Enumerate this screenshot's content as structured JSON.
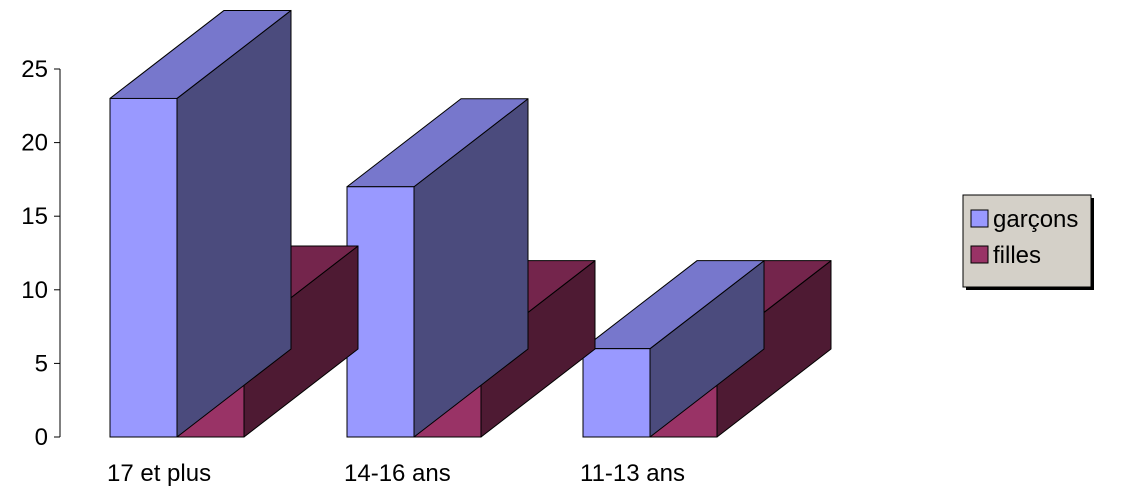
{
  "chart_data": {
    "type": "bar",
    "title": "",
    "xlabel": "",
    "ylabel": "",
    "categories": [
      "17 et plus",
      "14-16 ans",
      "11-13 ans"
    ],
    "series": [
      {
        "name": "garçons",
        "values": [
          23,
          17,
          6
        ]
      },
      {
        "name": "filles",
        "values": [
          7,
          6,
          6
        ]
      }
    ],
    "ylim": [
      0,
      25
    ],
    "yticks": [
      0,
      5,
      10,
      15,
      20,
      25
    ],
    "grid": false,
    "legend": "right",
    "three_d": true,
    "colors": {
      "garcons_front": "#9999ff",
      "garcons_top": "#7777cc",
      "garcons_side": "#4b4b7d",
      "filles_front": "#993366",
      "filles_top": "#74254c",
      "filles_side": "#4e1a33",
      "legend_bg": "#d4d0c8"
    }
  }
}
